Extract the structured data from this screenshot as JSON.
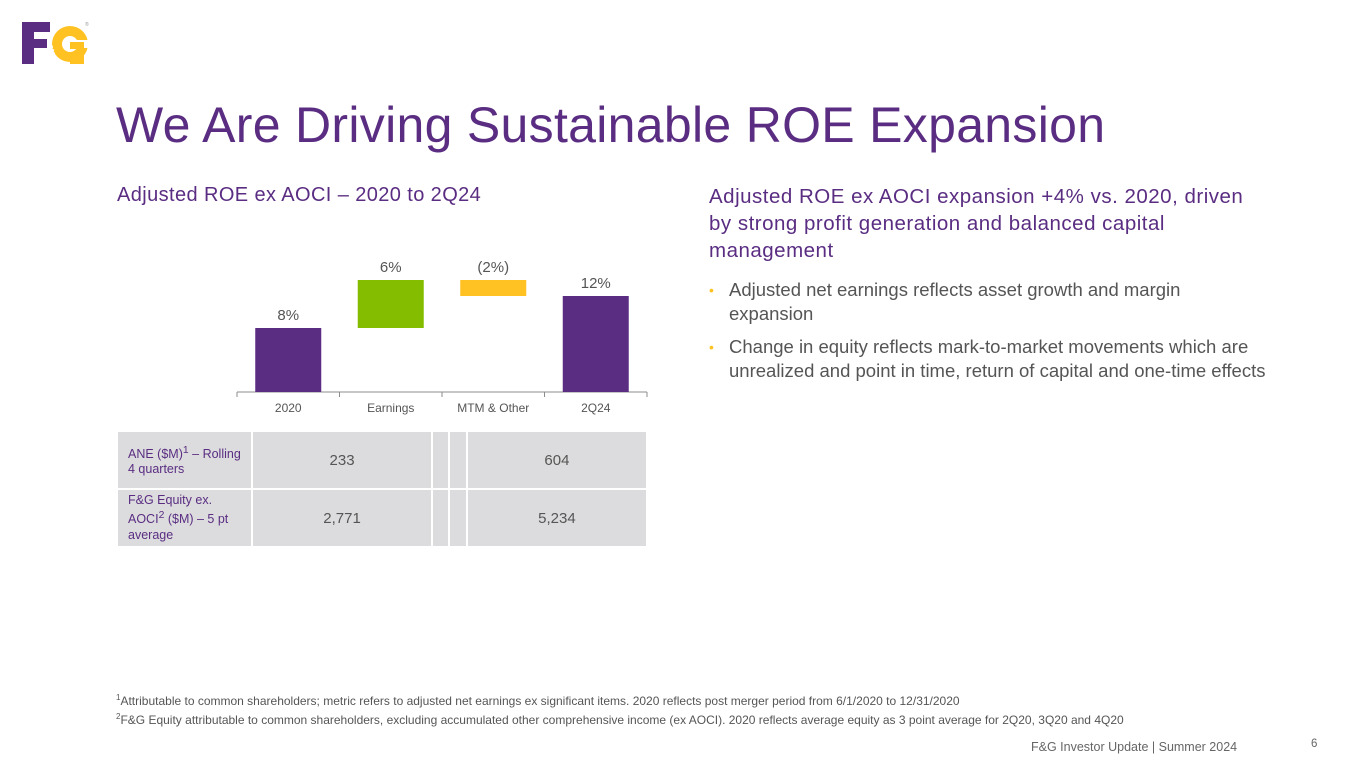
{
  "logo": {
    "text": "F&G",
    "registered": "®",
    "colors": {
      "f": "#5a2d82",
      "g": "#ffc222"
    }
  },
  "title": "We Are Driving Sustainable ROE Expansion",
  "left_heading": "Adjusted ROE ex AOCI – 2020 to 2Q24",
  "right_heading": "Adjusted ROE ex AOCI expansion +4% vs. 2020, driven by strong profit generation and balanced capital management",
  "bullets": [
    "Adjusted net earnings reflects asset growth and margin expansion",
    "Change in equity reflects mark-to-market movements which are unrealized and point in time, return of capital and one-time effects"
  ],
  "chart_data": {
    "type": "bar",
    "subtype": "waterfall",
    "title": "Adjusted ROE ex AOCI – 2020 to 2Q24",
    "categories": [
      "2020",
      "Earnings",
      "MTM & Other",
      "2Q24"
    ],
    "values": [
      8,
      6,
      -2,
      12
    ],
    "bar_kinds": [
      "total",
      "increase",
      "decrease",
      "total"
    ],
    "data_labels": [
      "8%",
      "6%",
      "(2%)",
      "12%"
    ],
    "colors": {
      "total": "#5a2d82",
      "increase": "#84bd00",
      "decrease": "#ffc222"
    },
    "ylim": [
      0,
      14
    ],
    "xlabel": "",
    "ylabel": "",
    "grid": false,
    "legend": "none"
  },
  "table": {
    "rows": [
      {
        "label": "ANE ($M)",
        "sup": "1",
        "label_rest": " – Rolling 4 quarters",
        "values": [
          "233",
          "",
          "",
          "604"
        ]
      },
      {
        "label": "F&G Equity ex. AOCI",
        "sup": "2",
        "label_rest": " ($M) – 5 pt average",
        "values": [
          "2,771",
          "",
          "",
          "5,234"
        ]
      }
    ]
  },
  "footnotes": [
    {
      "num": "1",
      "text": "Attributable to common shareholders; metric refers to adjusted net earnings ex significant items. 2020 reflects post merger period from 6/1/2020 to 12/31/2020"
    },
    {
      "num": "2",
      "text": "F&G Equity attributable to common shareholders, excluding accumulated other comprehensive income (ex AOCI).  2020 reflects average equity as 3 point average for 2Q20, 3Q20 and 4Q20"
    }
  ],
  "footer": {
    "text": "F&G Investor Update | Summer 2024",
    "page": "6"
  }
}
